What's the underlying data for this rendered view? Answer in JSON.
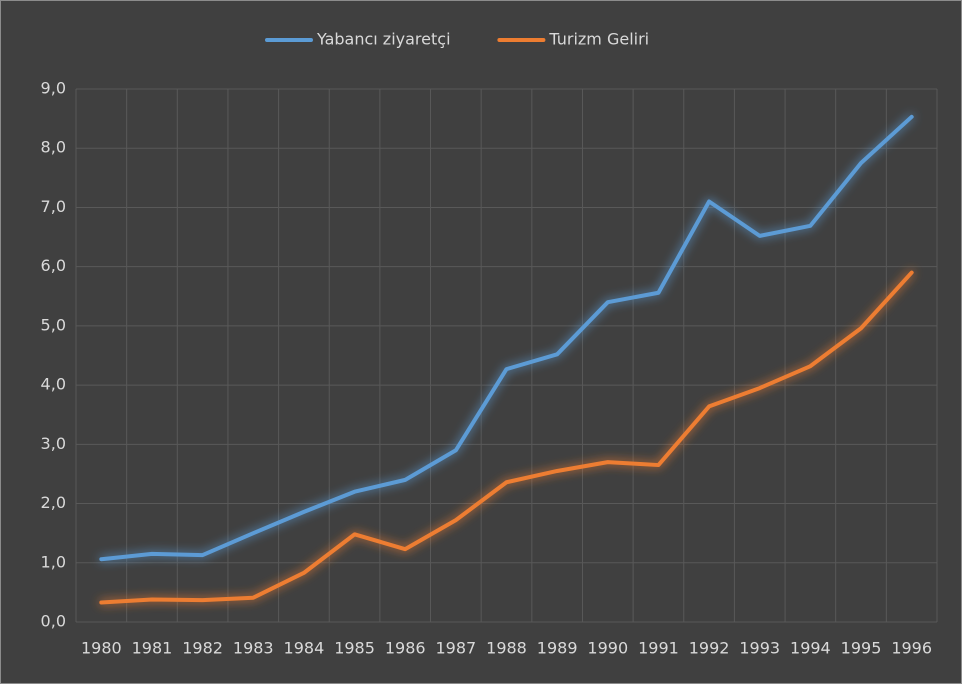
{
  "chart_data": {
    "type": "line",
    "categories": [
      "1980",
      "1981",
      "1982",
      "1983",
      "1984",
      "1985",
      "1986",
      "1987",
      "1988",
      "1989",
      "1990",
      "1991",
      "1992",
      "1993",
      "1994",
      "1995",
      "1996"
    ],
    "series": [
      {
        "name": "Yabancı ziyaretçi",
        "color": "#5b9bd5",
        "values": [
          1.06,
          1.15,
          1.13,
          1.5,
          1.86,
          2.2,
          2.4,
          2.9,
          4.27,
          4.52,
          5.4,
          5.56,
          7.1,
          6.52,
          6.69,
          7.75,
          8.53
        ]
      },
      {
        "name": "Turizm Geliri",
        "color": "#ed7d31",
        "values": [
          0.33,
          0.38,
          0.37,
          0.41,
          0.83,
          1.48,
          1.23,
          1.72,
          2.36,
          2.55,
          2.7,
          2.65,
          3.64,
          3.95,
          4.32,
          4.96,
          5.9
        ]
      }
    ],
    "ylim": [
      0,
      9
    ],
    "yticks": [
      {
        "value": 0,
        "label": "0,0"
      },
      {
        "value": 1,
        "label": "1,0"
      },
      {
        "value": 2,
        "label": "2,0"
      },
      {
        "value": 3,
        "label": "3,0"
      },
      {
        "value": 4,
        "label": "4,0"
      },
      {
        "value": 5,
        "label": "5,0"
      },
      {
        "value": 6,
        "label": "6,0"
      },
      {
        "value": 7,
        "label": "7,0"
      },
      {
        "value": 8,
        "label": "8,0"
      },
      {
        "value": 9,
        "label": "9,0"
      }
    ],
    "grid": true,
    "legend": "top"
  }
}
